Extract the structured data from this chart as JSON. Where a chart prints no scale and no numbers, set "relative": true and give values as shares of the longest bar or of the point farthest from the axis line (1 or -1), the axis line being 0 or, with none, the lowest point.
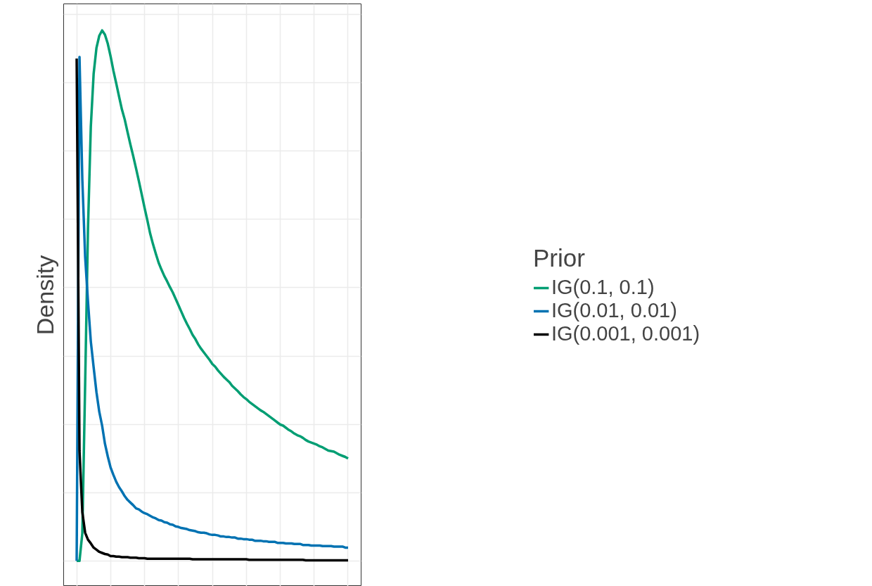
{
  "chart_data": {
    "type": "line",
    "relative": true,
    "ylabel": "Density",
    "legend_title": "Prior",
    "legend": "right",
    "grid": true,
    "tick_labels": false,
    "marker": "none",
    "line_style": "solid",
    "categories": [
      null,
      null,
      null,
      null,
      null,
      null,
      null,
      null,
      null,
      null,
      null,
      null,
      null,
      null,
      null,
      null,
      null,
      null,
      null,
      null,
      null,
      null,
      null,
      null,
      null,
      null,
      null,
      null,
      null,
      null,
      null,
      null,
      null,
      null,
      null,
      null,
      null,
      null,
      null,
      null,
      null,
      null,
      null,
      null,
      null,
      null,
      null,
      null,
      null,
      null,
      null,
      null,
      null,
      null,
      null,
      null,
      null,
      null,
      null,
      null,
      null,
      null,
      null,
      null,
      null,
      null,
      null,
      null,
      null,
      null,
      null,
      null,
      null,
      null,
      null,
      null,
      null,
      null,
      null,
      null,
      null,
      null,
      null,
      null,
      null,
      null,
      null,
      null,
      null,
      null,
      null,
      null,
      null,
      null,
      null,
      null,
      null
    ],
    "series": [
      {
        "name": "IG(0.1, 0.1)",
        "color": "#009e73",
        "values": [
          0,
          0,
          0.052,
          0.334,
          0.626,
          0.818,
          0.918,
          0.967,
          0.99,
          1.0,
          0.992,
          0.975,
          0.951,
          0.924,
          0.9,
          0.875,
          0.851,
          0.832,
          0.808,
          0.785,
          0.763,
          0.74,
          0.716,
          0.691,
          0.666,
          0.642,
          0.617,
          0.597,
          0.579,
          0.562,
          0.549,
          0.537,
          0.527,
          0.516,
          0.506,
          0.494,
          0.482,
          0.47,
          0.458,
          0.447,
          0.437,
          0.426,
          0.418,
          0.408,
          0.4,
          0.393,
          0.386,
          0.379,
          0.371,
          0.366,
          0.359,
          0.353,
          0.347,
          0.342,
          0.337,
          0.33,
          0.325,
          0.32,
          0.314,
          0.309,
          0.305,
          0.3,
          0.296,
          0.292,
          0.288,
          0.284,
          0.281,
          0.277,
          0.273,
          0.269,
          0.265,
          0.261,
          0.257,
          0.255,
          0.251,
          0.247,
          0.244,
          0.24,
          0.237,
          0.235,
          0.232,
          0.228,
          0.225,
          0.223,
          0.221,
          0.219,
          0.216,
          0.214,
          0.211,
          0.208,
          0.207,
          0.206,
          0.203,
          0.2,
          0.198,
          0.196,
          0.193
        ]
      },
      {
        "name": "IG(0.01, 0.01)",
        "color": "#0072b2",
        "values": [
          0,
          0.95,
          0.719,
          0.573,
          0.489,
          0.414,
          0.365,
          0.318,
          0.281,
          0.255,
          0.221,
          0.197,
          0.176,
          0.162,
          0.149,
          0.139,
          0.131,
          0.122,
          0.115,
          0.11,
          0.105,
          0.099,
          0.097,
          0.093,
          0.09,
          0.088,
          0.085,
          0.082,
          0.08,
          0.077,
          0.076,
          0.073,
          0.072,
          0.069,
          0.068,
          0.065,
          0.064,
          0.062,
          0.061,
          0.06,
          0.058,
          0.057,
          0.056,
          0.054,
          0.053,
          0.053,
          0.052,
          0.05,
          0.049,
          0.049,
          0.048,
          0.046,
          0.046,
          0.045,
          0.045,
          0.044,
          0.044,
          0.042,
          0.042,
          0.041,
          0.041,
          0.04,
          0.04,
          0.038,
          0.038,
          0.038,
          0.037,
          0.037,
          0.036,
          0.036,
          0.036,
          0.034,
          0.034,
          0.034,
          0.033,
          0.033,
          0.033,
          0.032,
          0.032,
          0.032,
          0.03,
          0.03,
          0.03,
          0.029,
          0.029,
          0.029,
          0.029,
          0.028,
          0.028,
          0.028,
          0.028,
          0.027,
          0.027,
          0.027,
          0.027,
          0.025,
          0.025
        ]
      },
      {
        "name": "IG(0.001, 0.001)",
        "color": "#000000",
        "values": [
          0.947,
          0.208,
          0.092,
          0.053,
          0.04,
          0.033,
          0.025,
          0.021,
          0.017,
          0.015,
          0.013,
          0.012,
          0.009,
          0.009,
          0.008,
          0.008,
          0.007,
          0.007,
          0.007,
          0.006,
          0.006,
          0.006,
          0.005,
          0.005,
          0.005,
          0.004,
          0.004,
          0.004,
          0.004,
          0.004,
          0.004,
          0.004,
          0.004,
          0.004,
          0.004,
          0.004,
          0.004,
          0.004,
          0.004,
          0.004,
          0.004,
          0.003,
          0.003,
          0.003,
          0.003,
          0.003,
          0.003,
          0.003,
          0.003,
          0.003,
          0.003,
          0.003,
          0.003,
          0.003,
          0.003,
          0.003,
          0.003,
          0.003,
          0.003,
          0.003,
          0.003,
          0.002,
          0.002,
          0.002,
          0.002,
          0.002,
          0.002,
          0.002,
          0.002,
          0.002,
          0.002,
          0.002,
          0.002,
          0.002,
          0.002,
          0.002,
          0.002,
          0.002,
          0.002,
          0.002,
          0.002,
          0.001,
          0.001,
          0.001,
          0.001,
          0.001,
          0.001,
          0.001,
          0.001,
          0.001,
          0.001,
          0.001,
          0.001,
          0.001,
          0.001,
          0.001,
          0.001
        ]
      }
    ]
  }
}
